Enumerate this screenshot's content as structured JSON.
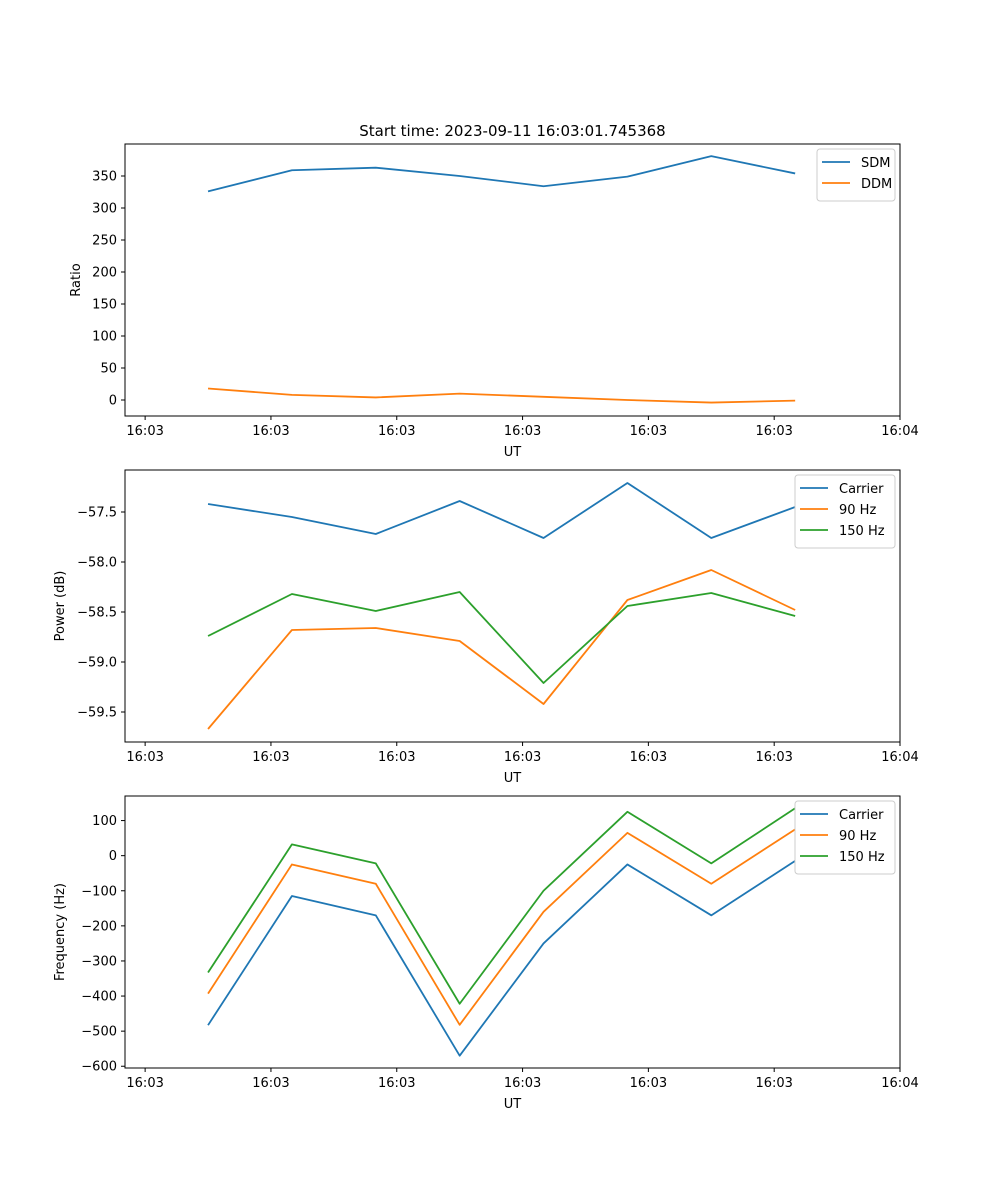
{
  "chart_data": [
    {
      "type": "line",
      "title": "Start time: 2023-09-11 16:03:01.745368",
      "xlabel": "UT",
      "ylabel": "Ratio",
      "xlim": [
        -0.24,
        9.0
      ],
      "ylim": [
        -25,
        400
      ],
      "x": [
        0.75,
        1.75,
        2.75,
        3.75,
        4.75,
        5.75,
        6.75,
        7.75
      ],
      "xticks": [
        0,
        1.5,
        3,
        4.5,
        6,
        7.5,
        9
      ],
      "xtick_labels": [
        "16:03",
        "16:03",
        "16:03",
        "16:03",
        "16:03",
        "16:03",
        "16:04"
      ],
      "yticks": [
        0,
        50,
        100,
        150,
        200,
        250,
        300,
        350
      ],
      "ytick_labels": [
        "0",
        "50",
        "100",
        "150",
        "200",
        "250",
        "300",
        "350"
      ],
      "legend_position": "top-right",
      "series": [
        {
          "name": "SDM",
          "color": "#1f77b4",
          "values": [
            326,
            359,
            363,
            350,
            334,
            349,
            381,
            354
          ]
        },
        {
          "name": "DDM",
          "color": "#ff7f0e",
          "values": [
            18,
            8,
            4,
            10,
            5,
            0,
            -4,
            -1
          ]
        }
      ]
    },
    {
      "type": "line",
      "title": "",
      "xlabel": "UT",
      "ylabel": "Power (dB)",
      "xlim": [
        -0.24,
        9.0
      ],
      "ylim": [
        -59.8,
        -57.08
      ],
      "x": [
        0.75,
        1.75,
        2.75,
        3.75,
        4.75,
        5.75,
        6.75,
        7.75
      ],
      "xticks": [
        0,
        1.5,
        3,
        4.5,
        6,
        7.5,
        9
      ],
      "xtick_labels": [
        "16:03",
        "16:03",
        "16:03",
        "16:03",
        "16:03",
        "16:03",
        "16:04"
      ],
      "yticks": [
        -57.5,
        -58.0,
        -58.5,
        -59.0,
        -59.5
      ],
      "ytick_labels": [
        "−57.5",
        "−58.0",
        "−58.5",
        "−59.0",
        "−59.5"
      ],
      "legend_position": "top-right",
      "series": [
        {
          "name": "Carrier",
          "color": "#1f77b4",
          "values": [
            -57.42,
            -57.55,
            -57.72,
            -57.39,
            -57.76,
            -57.21,
            -57.76,
            -57.45
          ]
        },
        {
          "name": "90 Hz",
          "color": "#ff7f0e",
          "values": [
            -59.67,
            -58.68,
            -58.66,
            -58.79,
            -59.42,
            -58.38,
            -58.08,
            -58.48
          ]
        },
        {
          "name": "150 Hz",
          "color": "#2ca02c",
          "values": [
            -58.74,
            -58.32,
            -58.49,
            -58.3,
            -59.21,
            -58.44,
            -58.31,
            -58.54
          ]
        }
      ]
    },
    {
      "type": "line",
      "title": "",
      "xlabel": "UT",
      "ylabel": "Frequency (Hz)",
      "xlim": [
        -0.24,
        9.0
      ],
      "ylim": [
        -605,
        170
      ],
      "x": [
        0.75,
        1.75,
        2.75,
        3.75,
        4.75,
        5.75,
        6.75,
        7.75
      ],
      "xticks": [
        0,
        1.5,
        3,
        4.5,
        6,
        7.5,
        9
      ],
      "xtick_labels": [
        "16:03",
        "16:03",
        "16:03",
        "16:03",
        "16:03",
        "16:03",
        "16:04"
      ],
      "yticks": [
        100,
        0,
        -100,
        -200,
        -300,
        -400,
        -500,
        -600
      ],
      "ytick_labels": [
        "100",
        "0",
        "−100",
        "−200",
        "−300",
        "−400",
        "−500",
        "−600"
      ],
      "legend_position": "top-right",
      "series": [
        {
          "name": "Carrier",
          "color": "#1f77b4",
          "values": [
            -483,
            -115,
            -170,
            -570,
            -250,
            -25,
            -170,
            -15
          ]
        },
        {
          "name": "90 Hz",
          "color": "#ff7f0e",
          "values": [
            -393,
            -25,
            -80,
            -482,
            -160,
            65,
            -80,
            75
          ]
        },
        {
          "name": "150 Hz",
          "color": "#2ca02c",
          "values": [
            -333,
            32,
            -22,
            -422,
            -100,
            125,
            -22,
            135
          ]
        }
      ]
    }
  ]
}
